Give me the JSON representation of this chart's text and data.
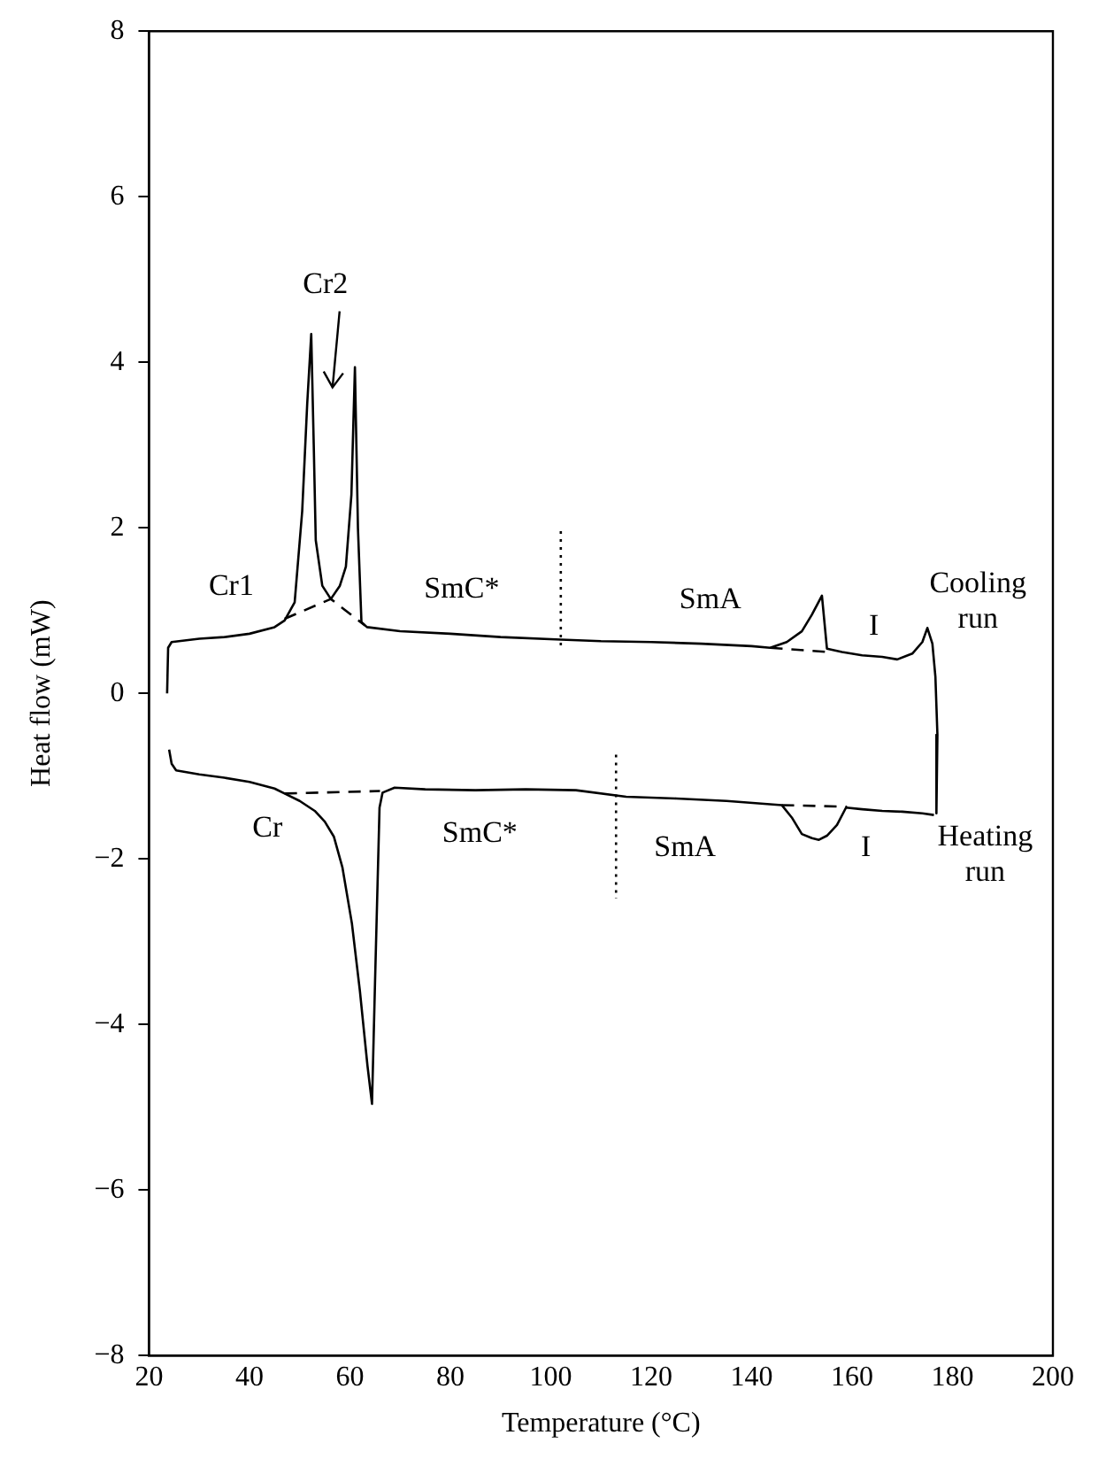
{
  "chart_data": {
    "type": "line",
    "xlabel": "Temperature (°C)",
    "ylabel": "Heat flow (mW)",
    "xlim": [
      20,
      200
    ],
    "xticks": [
      20,
      40,
      60,
      80,
      100,
      120,
      140,
      160,
      180,
      200
    ],
    "ylim": [
      -8,
      8
    ],
    "yticks": [
      {
        "value": -8,
        "label": "−8"
      },
      {
        "value": -6,
        "label": "−6"
      },
      {
        "value": -4,
        "label": "−4"
      },
      {
        "value": -2,
        "label": "−2"
      },
      0,
      2,
      4,
      6,
      8
    ],
    "grid": false,
    "legend": false,
    "series": [
      {
        "color": "#000000",
        "line_style": "solid",
        "x": [
          23.6,
          23.8,
          24.5,
          30,
          35,
          40,
          45,
          47,
          49,
          50.5,
          51.5,
          52.3,
          52.8,
          53.2,
          54.5,
          56.2,
          58,
          59.2,
          60.3,
          61,
          61.6,
          62.3,
          63.4,
          70,
          80,
          90,
          102,
          110,
          120,
          130,
          140,
          143.7,
          147,
          150,
          152,
          154,
          155,
          158,
          162,
          166,
          169,
          172,
          174,
          175,
          176,
          176.6,
          177,
          176.8
        ],
        "values": [
          0,
          0.55,
          0.62,
          0.66,
          0.68,
          0.72,
          0.8,
          0.88,
          1.1,
          2.2,
          3.5,
          4.34,
          3,
          1.85,
          1.3,
          1.14,
          1.3,
          1.53,
          2.4,
          3.94,
          2,
          0.86,
          0.8,
          0.75,
          0.72,
          0.68,
          0.65,
          0.63,
          0.62,
          0.6,
          0.57,
          0.55,
          0.62,
          0.75,
          0.95,
          1.18,
          0.54,
          0.5,
          0.46,
          0.44,
          0.41,
          0.48,
          0.62,
          0.79,
          0.6,
          0.2,
          -0.5,
          -1.45
        ]
      },
      {
        "color": "#000000",
        "line_style": "solid",
        "x": [
          24,
          24.5,
          25.4,
          30,
          35,
          40,
          45,
          47,
          50,
          53,
          55,
          56.8,
          58.5,
          60.4,
          62,
          63.5,
          64.4,
          65,
          65.9,
          66.5,
          68.9,
          75,
          85,
          95,
          105,
          115,
          125,
          135,
          146,
          148,
          150,
          152,
          153.4,
          155,
          157,
          158.8,
          162,
          166,
          170,
          174,
          176.3
        ],
        "values": [
          -0.68,
          -0.85,
          -0.93,
          -0.98,
          -1.02,
          -1.07,
          -1.15,
          -1.21,
          -1.3,
          -1.42,
          -1.55,
          -1.73,
          -2.1,
          -2.78,
          -3.6,
          -4.5,
          -4.96,
          -3.5,
          -1.38,
          -1.2,
          -1.14,
          -1.16,
          -1.17,
          -1.16,
          -1.17,
          -1.25,
          -1.27,
          -1.3,
          -1.35,
          -1.5,
          -1.7,
          -1.75,
          -1.77,
          -1.72,
          -1.59,
          -1.38,
          -1.4,
          -1.42,
          -1.43,
          -1.45,
          -1.47
        ]
      },
      {
        "color": "#000000",
        "line_style": "dashed",
        "x": [
          47,
          56.2,
          63
        ],
        "values": [
          0.9,
          1.14,
          0.82
        ]
      },
      {
        "color": "#000000",
        "line_style": "dashed",
        "x": [
          143.7,
          155
        ],
        "values": [
          0.55,
          0.5
        ]
      },
      {
        "color": "#000000",
        "line_style": "dashed",
        "x": [
          47,
          66
        ],
        "values": [
          -1.21,
          -1.18
        ]
      },
      {
        "color": "#000000",
        "line_style": "dashed",
        "x": [
          146,
          159
        ],
        "values": [
          -1.35,
          -1.37
        ]
      },
      {
        "color": "#000000",
        "line_style": "dotted",
        "x": [
          102,
          102
        ],
        "values": [
          1.96,
          0.55
        ]
      },
      {
        "color": "#000000",
        "line_style": "dotted",
        "x": [
          113,
          113
        ],
        "values": [
          -0.74,
          -2.48
        ]
      }
    ],
    "annotations": [
      "Cr2",
      "Cr1",
      "SmC*",
      "SmA",
      "I",
      "Cooling run",
      "Cr",
      "SmC*",
      "SmA",
      "I",
      "Heating run"
    ]
  }
}
